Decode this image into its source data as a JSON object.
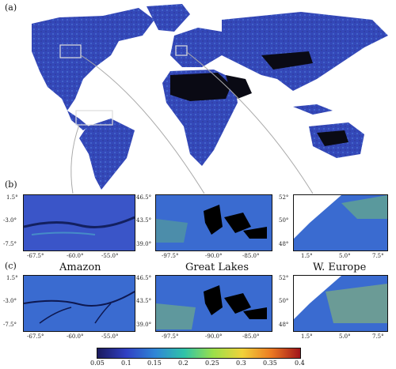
{
  "panel_labels": {
    "a": "(a)",
    "b": "(b)",
    "c": "(c)"
  },
  "regions": [
    {
      "name": "Amazon",
      "lat_ticks": [
        "1.5°",
        "-3.0°",
        "-7.5°"
      ],
      "lon_ticks": [
        "-67.5°",
        "-60.0°",
        "-55.0°"
      ]
    },
    {
      "name": "Great Lakes",
      "lat_ticks": [
        "46.5°",
        "43.5°",
        "39.0°"
      ],
      "lon_ticks": [
        "-97.5°",
        "-90.0°",
        "-85.0°"
      ]
    },
    {
      "name": "W. Europe",
      "lat_ticks": [
        "52°",
        "50°",
        "48°"
      ],
      "lon_ticks": [
        "1.5°",
        "5.0°",
        "7.5°"
      ]
    }
  ],
  "colorbar": {
    "ticks": [
      "0.05",
      "0.1",
      "0.15",
      "0.2",
      "0.25",
      "0.3",
      "0.35",
      "0.4"
    ],
    "colors": [
      "#1b1a5e",
      "#3040c4",
      "#2f86d6",
      "#2fc3a8",
      "#9be04a",
      "#f0d23a",
      "#ec7a22",
      "#a1141a"
    ]
  },
  "colors": {
    "ocean": "#ffffff",
    "land_base": "#3448b8",
    "desert": "#0a0a14",
    "zoom_line": "#aaaaaa"
  }
}
